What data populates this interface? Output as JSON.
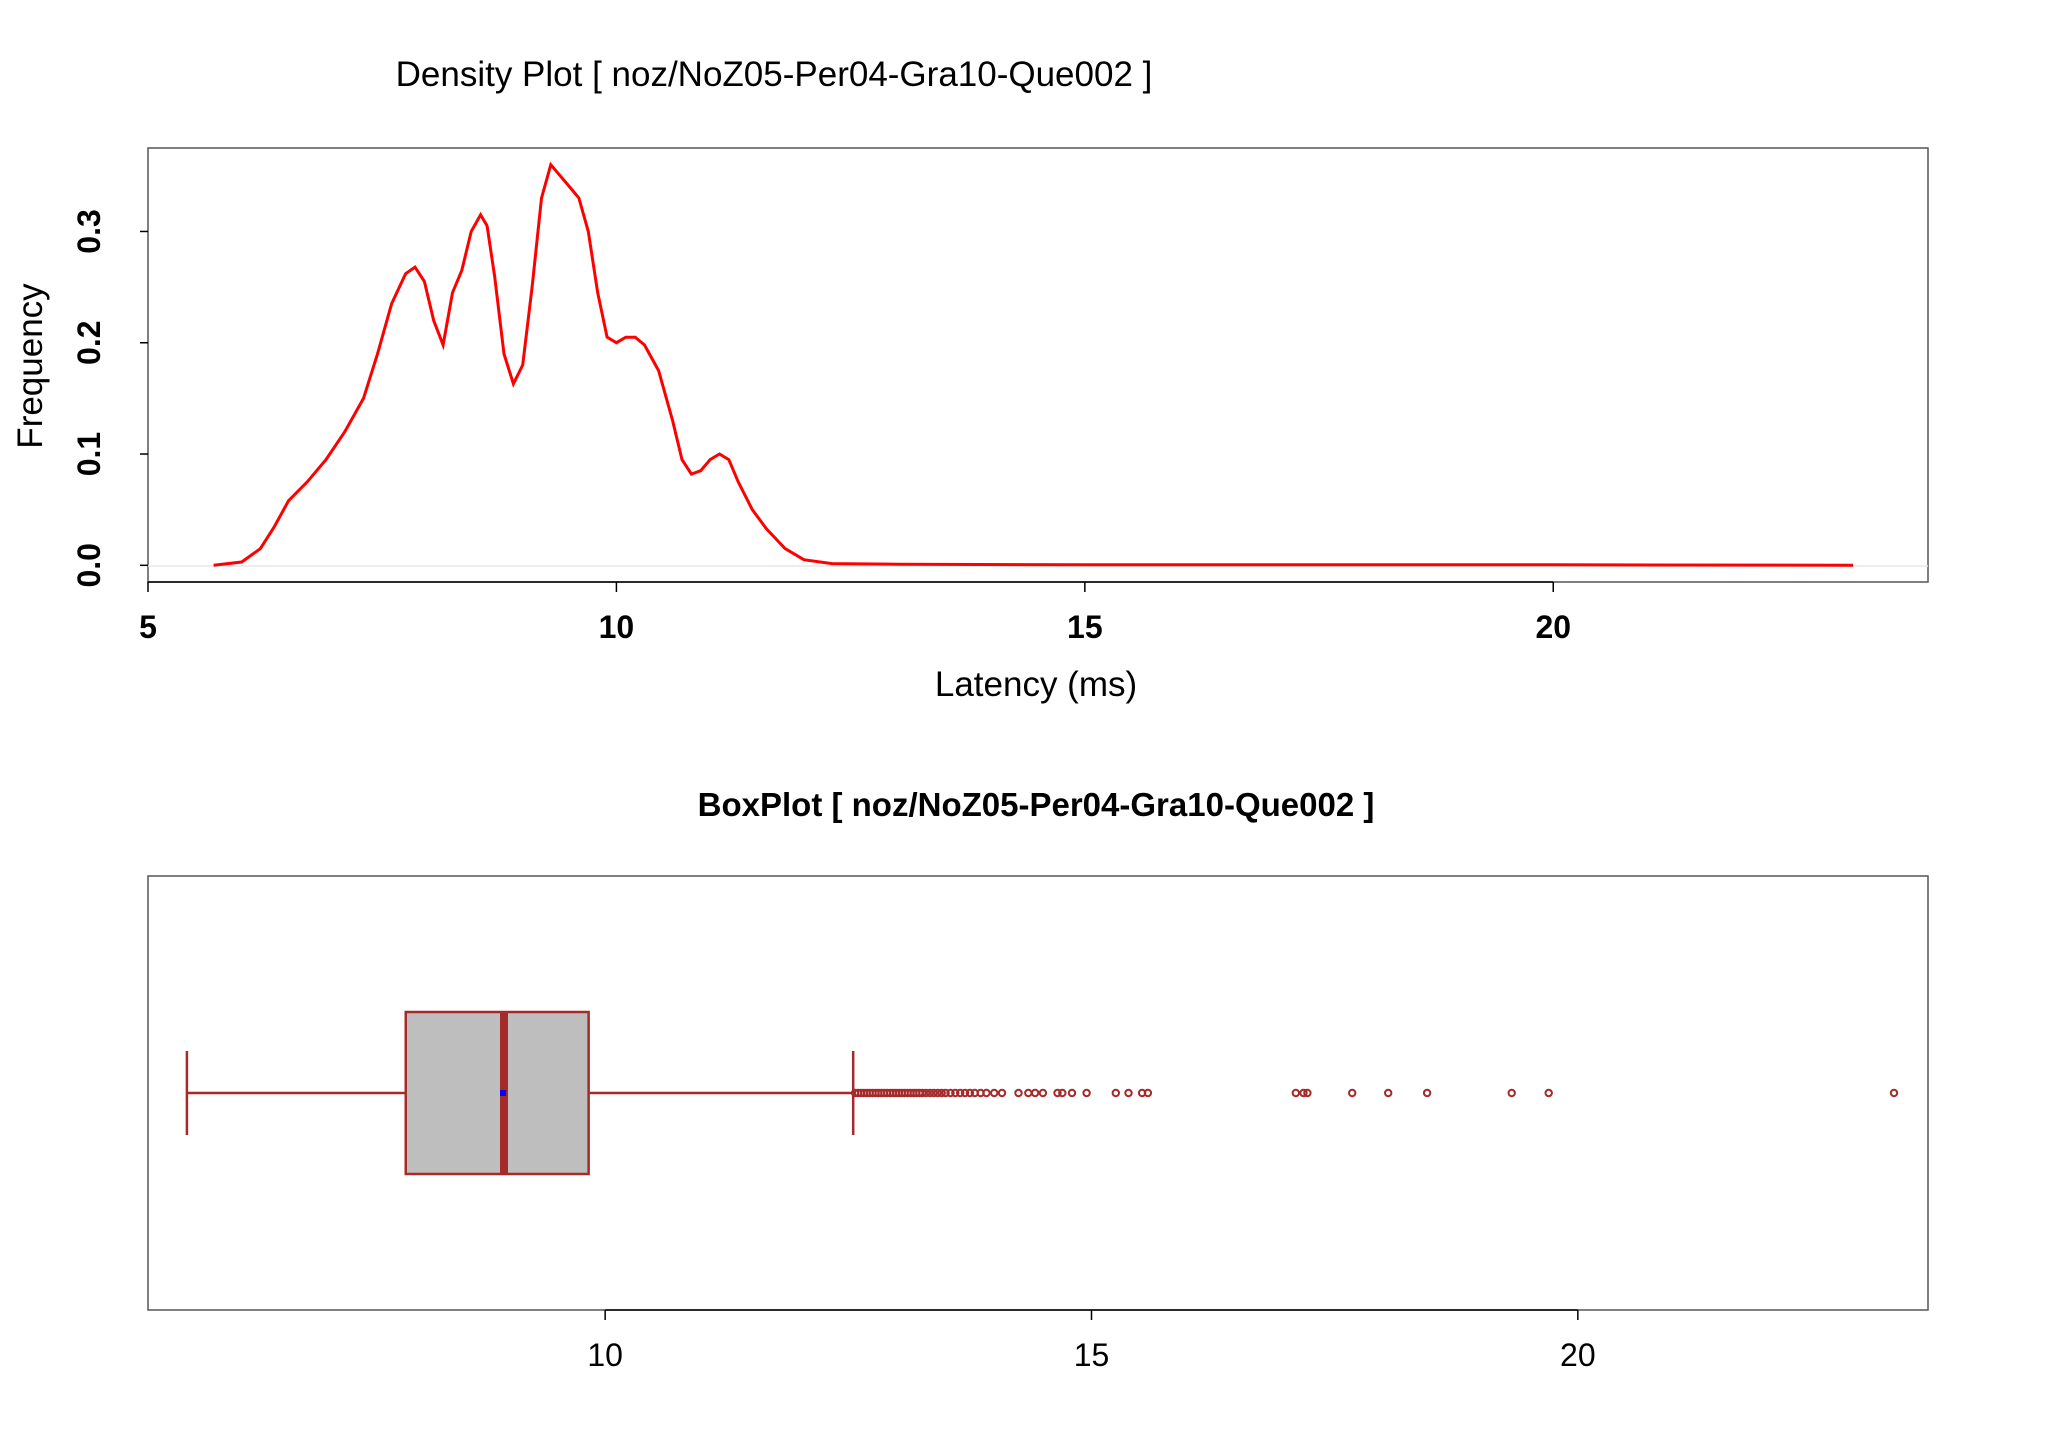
{
  "chart_data": [
    {
      "type": "line",
      "title": "Density Plot [ noz/NoZ05-Per04-Gra10-Que002 ]",
      "xlabel": "Latency (ms)",
      "ylabel": "Frequency",
      "xlim": [
        5,
        24
      ],
      "ylim": [
        -0.015,
        0.375
      ],
      "xticks": [
        "5",
        "10",
        "15",
        "20"
      ],
      "yticks": [
        "0.0",
        "0.1",
        "0.2",
        "0.3"
      ],
      "grid": false,
      "color": "#ff0000",
      "series": [
        {
          "x": [
            5.7,
            6.0,
            6.2,
            6.35,
            6.5,
            6.7,
            6.9,
            7.1,
            7.3,
            7.45,
            7.6,
            7.75,
            7.85,
            7.95,
            8.05,
            8.15,
            8.25,
            8.35,
            8.45,
            8.55,
            8.62,
            8.7,
            8.8,
            8.9,
            9.0,
            9.1,
            9.2,
            9.3,
            9.4,
            9.5,
            9.6,
            9.7,
            9.8,
            9.9,
            10.0,
            10.1,
            10.2,
            10.3,
            10.45,
            10.6,
            10.7,
            10.8,
            10.9,
            11.0,
            11.1,
            11.2,
            11.3,
            11.45,
            11.6,
            11.8,
            12.0,
            12.3,
            13.0,
            15.0,
            17.0,
            20.0,
            23.2
          ],
          "y": [
            0.0,
            0.003,
            0.015,
            0.035,
            0.058,
            0.075,
            0.095,
            0.12,
            0.15,
            0.19,
            0.235,
            0.262,
            0.268,
            0.255,
            0.22,
            0.198,
            0.245,
            0.265,
            0.3,
            0.315,
            0.305,
            0.26,
            0.19,
            0.163,
            0.18,
            0.25,
            0.33,
            0.36,
            0.35,
            0.34,
            0.33,
            0.3,
            0.245,
            0.205,
            0.2,
            0.205,
            0.205,
            0.198,
            0.175,
            0.13,
            0.095,
            0.082,
            0.085,
            0.095,
            0.1,
            0.095,
            0.075,
            0.05,
            0.033,
            0.015,
            0.005,
            0.0015,
            0.001,
            0.0005,
            0.0005,
            0.0005,
            0.0
          ]
        }
      ]
    },
    {
      "type": "box",
      "title": "BoxPlot [ noz/NoZ05-Per04-Gra10-Que002 ]",
      "xlim": [
        5.3,
        23.6
      ],
      "xticks": [
        "10",
        "15",
        "20"
      ],
      "box_color": "#a52a2a",
      "fill_color": "#bebebe",
      "mean_color": "#0000ff",
      "whisker_low": 5.7,
      "q1": 7.95,
      "median": 8.96,
      "q3": 9.83,
      "whisker_high": 12.55,
      "mean": 8.95,
      "outliers": [
        12.57,
        12.6,
        12.63,
        12.66,
        12.69,
        12.72,
        12.75,
        12.78,
        12.81,
        12.84,
        12.87,
        12.9,
        12.93,
        12.96,
        12.99,
        13.02,
        13.05,
        13.08,
        13.11,
        13.14,
        13.17,
        13.2,
        13.23,
        13.26,
        13.3,
        13.34,
        13.38,
        13.42,
        13.46,
        13.5,
        13.55,
        13.6,
        13.65,
        13.7,
        13.75,
        13.8,
        13.86,
        13.92,
        14.0,
        14.08,
        14.25,
        14.35,
        14.42,
        14.5,
        14.65,
        14.7,
        14.8,
        14.95,
        15.25,
        15.38,
        15.52,
        15.58,
        17.1,
        17.18,
        17.22,
        17.68,
        18.05,
        18.45,
        19.32,
        19.7,
        23.25
      ]
    }
  ]
}
